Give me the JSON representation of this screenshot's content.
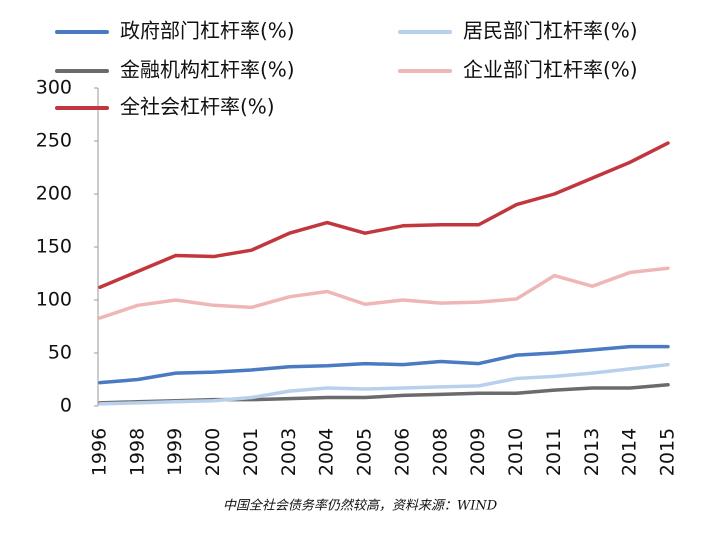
{
  "chart_data": {
    "type": "line",
    "categories": [
      "1996",
      "1998",
      "1999",
      "2000",
      "2001",
      "2003",
      "2004",
      "2005",
      "2006",
      "2008",
      "2009",
      "2010",
      "2011",
      "2013",
      "2014",
      "2015"
    ],
    "series": [
      {
        "name": "政府部门杠杆率(%)",
        "color": "#4a7ac2",
        "values": [
          22,
          25,
          31,
          32,
          34,
          37,
          38,
          40,
          39,
          42,
          40,
          48,
          50,
          53,
          56,
          56
        ]
      },
      {
        "name": "居民部门杠杆率(%)",
        "color": "#b9d0ec",
        "values": [
          2,
          3,
          4,
          5,
          8,
          14,
          17,
          16,
          17,
          18,
          19,
          26,
          28,
          31,
          35,
          39
        ]
      },
      {
        "name": "金融机构杠杆率(%)",
        "color": "#6b6b6b",
        "values": [
          3,
          4,
          5,
          6,
          6,
          7,
          8,
          8,
          10,
          11,
          12,
          12,
          15,
          17,
          17,
          20
        ]
      },
      {
        "name": "企业部门杠杆率(%)",
        "color": "#efb6b6",
        "values": [
          83,
          95,
          100,
          95,
          93,
          103,
          108,
          96,
          100,
          97,
          98,
          101,
          123,
          113,
          126,
          130
        ]
      },
      {
        "name": "全社会杠杆率(%)",
        "color": "#c2373d",
        "values": [
          112,
          127,
          142,
          141,
          147,
          163,
          173,
          163,
          170,
          171,
          171,
          190,
          200,
          215,
          230,
          248
        ]
      }
    ],
    "ylim": [
      0,
      300
    ],
    "yticks": [
      0,
      50,
      100,
      150,
      200,
      250,
      300
    ],
    "caption": "中国全社会债务率仍然较高，资料来源：WIND"
  }
}
